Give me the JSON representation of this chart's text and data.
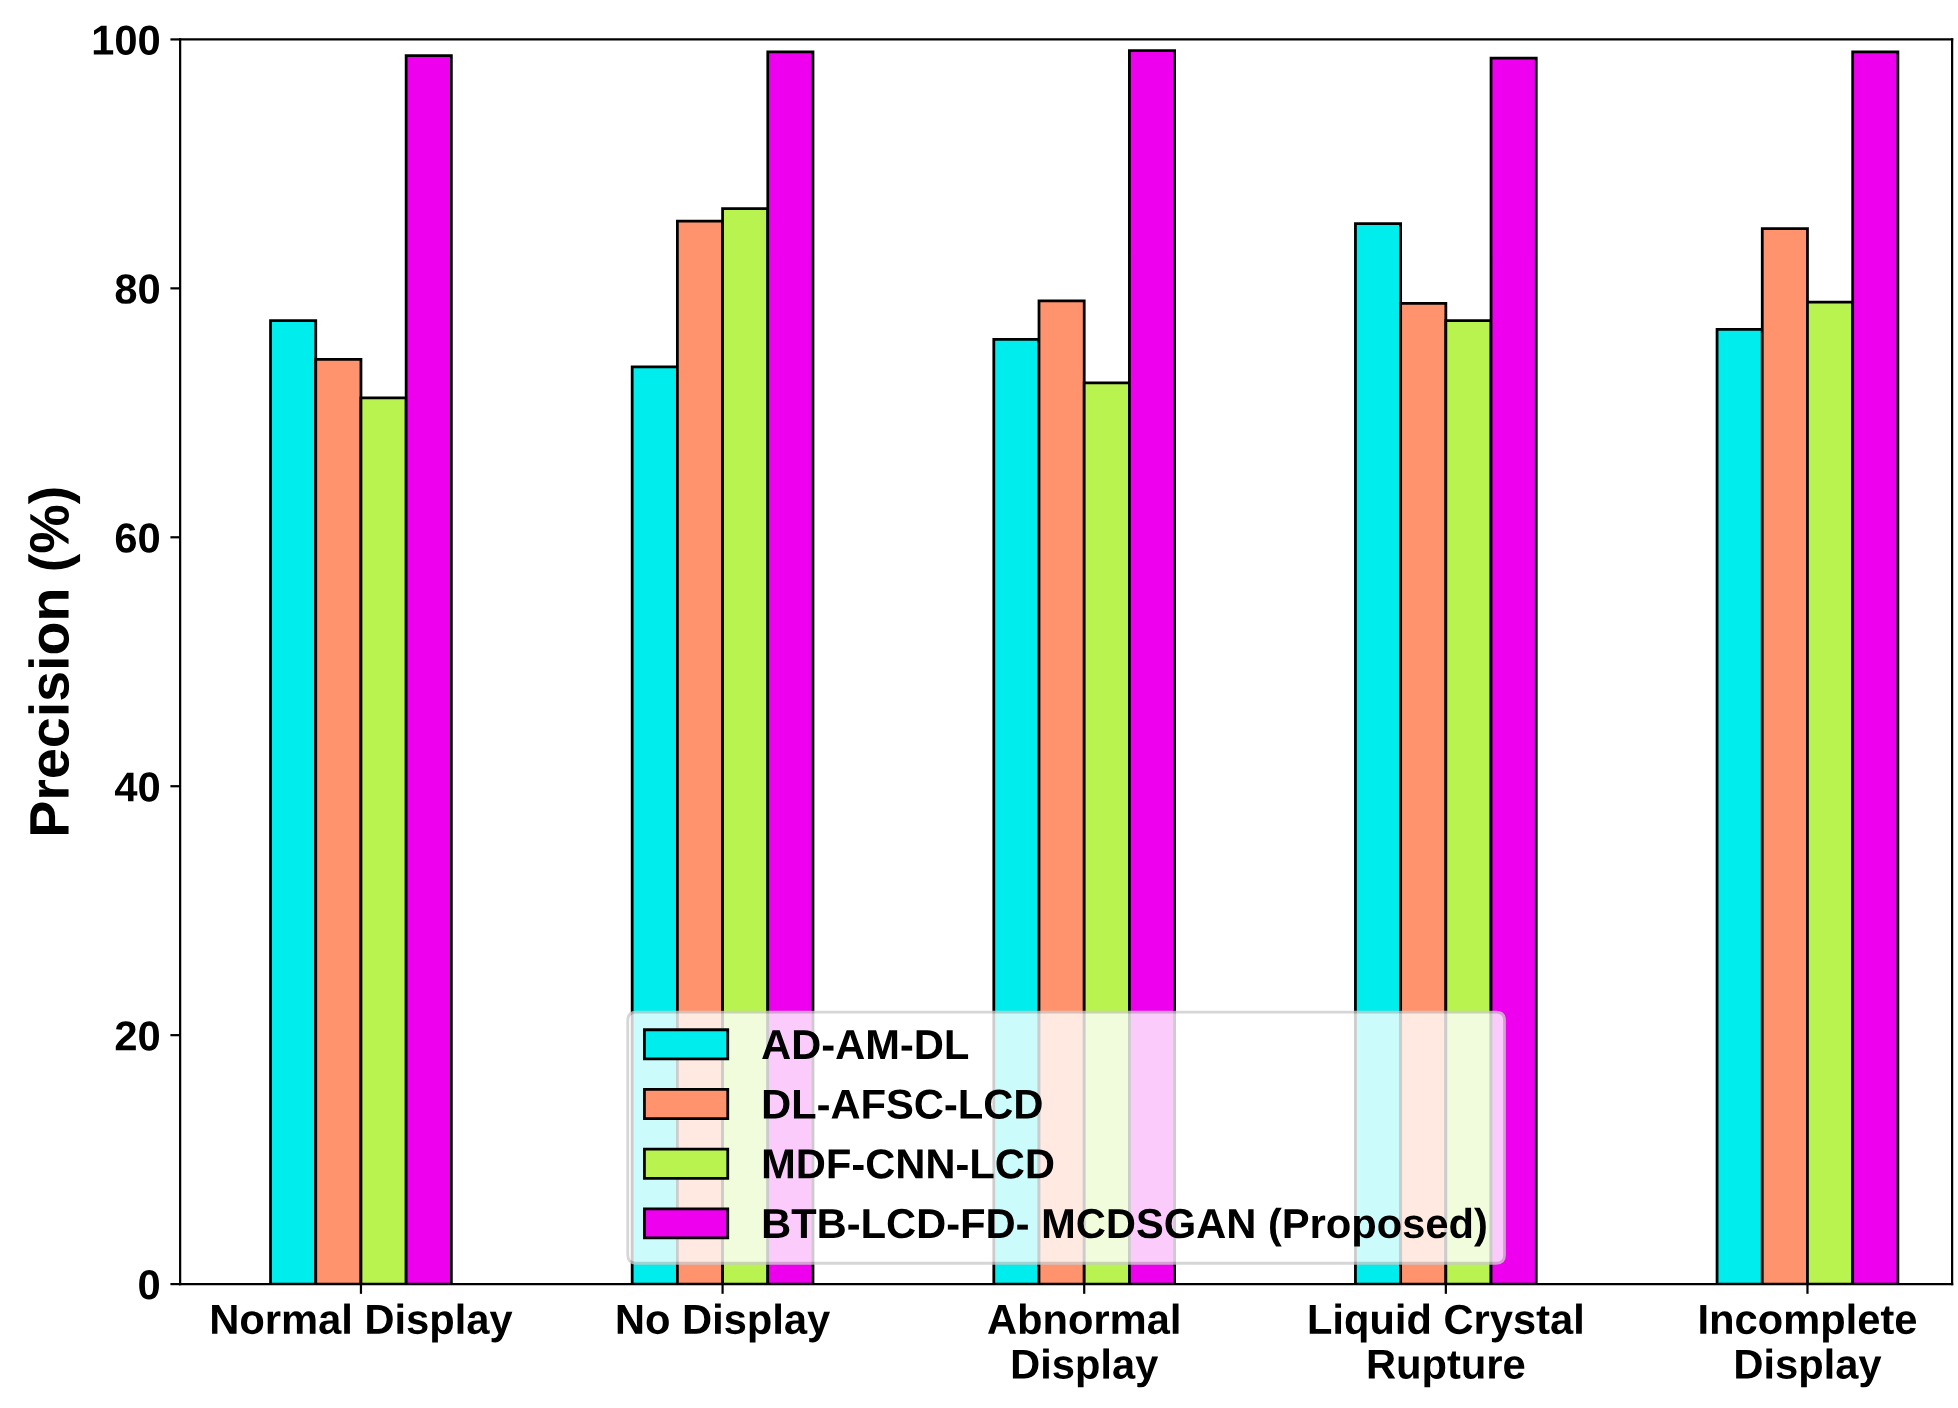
{
  "chart_data": {
    "type": "bar",
    "ylabel": "Precision (%)",
    "categories": [
      "Normal Display",
      "No Display",
      "Abnormal\nDisplay",
      "Liquid Crystal\nRupture",
      "Incomplete\nDisplay"
    ],
    "series": [
      {
        "name": "AD-AM-DL",
        "color": "#00eded",
        "values": [
          77.4,
          73.7,
          75.9,
          85.2,
          76.7
        ]
      },
      {
        "name": "DL-AFSC-LCD",
        "color": "#ff936d",
        "values": [
          74.3,
          85.4,
          79.0,
          78.8,
          84.8
        ]
      },
      {
        "name": "MDF-CNN-LCD",
        "color": "#b8f350",
        "values": [
          71.2,
          86.4,
          72.4,
          77.4,
          78.9
        ]
      },
      {
        "name": "BTB-LCD-FD- MCDSGAN (Proposed)",
        "color": "#ee00ee",
        "values": [
          98.7,
          99.0,
          99.1,
          98.5,
          99.0
        ]
      }
    ],
    "ylim": [
      0,
      100
    ],
    "yticks": [
      0,
      20,
      40,
      60,
      80,
      100
    ],
    "grid": false,
    "legend": "bottom"
  }
}
